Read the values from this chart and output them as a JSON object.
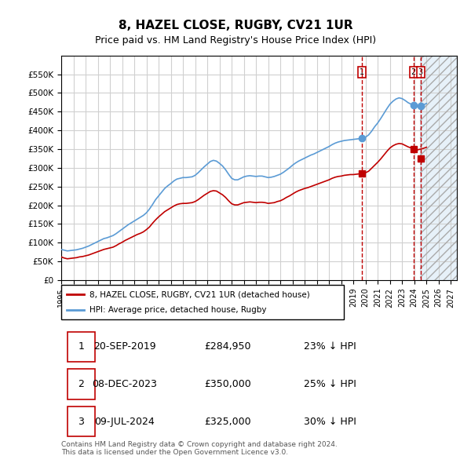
{
  "title": "8, HAZEL CLOSE, RUGBY, CV21 1UR",
  "subtitle": "Price paid vs. HM Land Registry's House Price Index (HPI)",
  "ylabel": "",
  "ylim": [
    0,
    600000
  ],
  "yticks": [
    0,
    50000,
    100000,
    150000,
    200000,
    250000,
    300000,
    350000,
    400000,
    450000,
    500000,
    550000
  ],
  "xlim_start": 1995.0,
  "xlim_end": 2027.5,
  "hpi_color": "#5b9bd5",
  "price_color": "#c00000",
  "vline_color": "#c00000",
  "background_color": "#ffffff",
  "plot_bg_color": "#ffffff",
  "grid_color": "#d0d0d0",
  "legend_label_red": "8, HAZEL CLOSE, RUGBY, CV21 1UR (detached house)",
  "legend_label_blue": "HPI: Average price, detached house, Rugby",
  "transactions": [
    {
      "num": 1,
      "date": "20-SEP-2019",
      "price": "£284,950",
      "pct": "23% ↓ HPI",
      "year": 2019.72
    },
    {
      "num": 2,
      "date": "08-DEC-2023",
      "price": "£350,000",
      "pct": "25% ↓ HPI",
      "year": 2023.93
    },
    {
      "num": 3,
      "date": "09-JUL-2024",
      "price": "£325,000",
      "pct": "30% ↓ HPI",
      "year": 2024.52
    }
  ],
  "footer": "Contains HM Land Registry data © Crown copyright and database right 2024.\nThis data is licensed under the Open Government Licence v3.0.",
  "hpi_data_x": [
    1995.0,
    1995.25,
    1995.5,
    1995.75,
    1996.0,
    1996.25,
    1996.5,
    1996.75,
    1997.0,
    1997.25,
    1997.5,
    1997.75,
    1998.0,
    1998.25,
    1998.5,
    1998.75,
    1999.0,
    1999.25,
    1999.5,
    1999.75,
    2000.0,
    2000.25,
    2000.5,
    2000.75,
    2001.0,
    2001.25,
    2001.5,
    2001.75,
    2002.0,
    2002.25,
    2002.5,
    2002.75,
    2003.0,
    2003.25,
    2003.5,
    2003.75,
    2004.0,
    2004.25,
    2004.5,
    2004.75,
    2005.0,
    2005.25,
    2005.5,
    2005.75,
    2006.0,
    2006.25,
    2006.5,
    2006.75,
    2007.0,
    2007.25,
    2007.5,
    2007.75,
    2008.0,
    2008.25,
    2008.5,
    2008.75,
    2009.0,
    2009.25,
    2009.5,
    2009.75,
    2010.0,
    2010.25,
    2010.5,
    2010.75,
    2011.0,
    2011.25,
    2011.5,
    2011.75,
    2012.0,
    2012.25,
    2012.5,
    2012.75,
    2013.0,
    2013.25,
    2013.5,
    2013.75,
    2014.0,
    2014.25,
    2014.5,
    2014.75,
    2015.0,
    2015.25,
    2015.5,
    2015.75,
    2016.0,
    2016.25,
    2016.5,
    2016.75,
    2017.0,
    2017.25,
    2017.5,
    2017.75,
    2018.0,
    2018.25,
    2018.5,
    2018.75,
    2019.0,
    2019.25,
    2019.5,
    2019.75,
    2020.0,
    2020.25,
    2020.5,
    2020.75,
    2021.0,
    2021.25,
    2021.5,
    2021.75,
    2022.0,
    2022.25,
    2022.5,
    2022.75,
    2023.0,
    2023.25,
    2023.5,
    2023.75,
    2024.0,
    2024.25,
    2024.5,
    2024.75,
    2025.0
  ],
  "hpi_data_y": [
    82000,
    80000,
    78000,
    79000,
    80000,
    81000,
    83000,
    85000,
    88000,
    91000,
    95000,
    99000,
    103000,
    107000,
    111000,
    113000,
    116000,
    119000,
    124000,
    130000,
    136000,
    142000,
    148000,
    153000,
    158000,
    163000,
    168000,
    173000,
    180000,
    190000,
    202000,
    215000,
    225000,
    235000,
    245000,
    252000,
    258000,
    265000,
    270000,
    272000,
    274000,
    274000,
    275000,
    276000,
    280000,
    287000,
    295000,
    303000,
    310000,
    317000,
    320000,
    318000,
    312000,
    305000,
    295000,
    283000,
    272000,
    268000,
    268000,
    272000,
    276000,
    278000,
    279000,
    278000,
    277000,
    278000,
    278000,
    276000,
    274000,
    275000,
    277000,
    280000,
    283000,
    288000,
    294000,
    300000,
    307000,
    313000,
    318000,
    322000,
    326000,
    330000,
    334000,
    337000,
    341000,
    345000,
    349000,
    353000,
    357000,
    362000,
    366000,
    369000,
    371000,
    373000,
    374000,
    375000,
    376000,
    377000,
    378000,
    380000,
    382000,
    388000,
    398000,
    410000,
    420000,
    432000,
    445000,
    458000,
    470000,
    478000,
    484000,
    487000,
    485000,
    480000,
    474000,
    470000,
    466000,
    463000,
    465000,
    468000,
    472000
  ],
  "price_data_x": [
    1995.0,
    1995.25,
    1995.5,
    1995.75,
    1996.0,
    1996.25,
    1996.5,
    1996.75,
    1997.0,
    1997.25,
    1997.5,
    1997.75,
    1998.0,
    1998.25,
    1998.5,
    1998.75,
    1999.0,
    1999.25,
    1999.5,
    1999.75,
    2000.0,
    2000.25,
    2000.5,
    2000.75,
    2001.0,
    2001.25,
    2001.5,
    2001.75,
    2002.0,
    2002.25,
    2002.5,
    2002.75,
    2003.0,
    2003.25,
    2003.5,
    2003.75,
    2004.0,
    2004.25,
    2004.5,
    2004.75,
    2005.0,
    2005.25,
    2005.5,
    2005.75,
    2006.0,
    2006.25,
    2006.5,
    2006.75,
    2007.0,
    2007.25,
    2007.5,
    2007.75,
    2008.0,
    2008.25,
    2008.5,
    2008.75,
    2009.0,
    2009.25,
    2009.5,
    2009.75,
    2010.0,
    2010.25,
    2010.5,
    2010.75,
    2011.0,
    2011.25,
    2011.5,
    2011.75,
    2012.0,
    2012.25,
    2012.5,
    2012.75,
    2013.0,
    2013.25,
    2013.5,
    2013.75,
    2014.0,
    2014.25,
    2014.5,
    2014.75,
    2015.0,
    2015.25,
    2015.5,
    2015.75,
    2016.0,
    2016.25,
    2016.5,
    2016.75,
    2017.0,
    2017.25,
    2017.5,
    2017.75,
    2018.0,
    2018.25,
    2018.5,
    2018.75,
    2019.0,
    2019.25,
    2019.5,
    2019.75,
    2020.0,
    2020.25,
    2020.5,
    2020.75,
    2021.0,
    2021.25,
    2021.5,
    2021.75,
    2022.0,
    2022.25,
    2022.5,
    2022.75,
    2023.0,
    2023.25,
    2023.5,
    2023.75,
    2024.0,
    2024.25,
    2024.5,
    2024.75,
    2025.0
  ],
  "price_data_y": [
    62000,
    59000,
    57000,
    58000,
    59000,
    60000,
    62000,
    63000,
    65000,
    67000,
    70000,
    73000,
    76000,
    79000,
    82000,
    84000,
    86000,
    88000,
    92000,
    97000,
    101000,
    106000,
    110000,
    114000,
    118000,
    122000,
    125000,
    129000,
    135000,
    142000,
    152000,
    161000,
    169000,
    176000,
    183000,
    188000,
    193000,
    198000,
    202000,
    204000,
    205000,
    205000,
    206000,
    207000,
    210000,
    215000,
    221000,
    227000,
    232000,
    237000,
    239000,
    238000,
    233000,
    228000,
    221000,
    212000,
    204000,
    201000,
    201000,
    204000,
    207000,
    208000,
    209000,
    208000,
    207000,
    208000,
    208000,
    207000,
    205000,
    206000,
    207000,
    210000,
    212000,
    216000,
    221000,
    225000,
    230000,
    235000,
    239000,
    242000,
    245000,
    247000,
    250000,
    253000,
    256000,
    259000,
    262000,
    265000,
    268000,
    272000,
    275000,
    277000,
    278000,
    280000,
    281000,
    282000,
    282000,
    283000,
    284000,
    285000,
    287000,
    291000,
    299000,
    307000,
    315000,
    324000,
    334000,
    344000,
    353000,
    359000,
    363000,
    365000,
    364000,
    360000,
    356000,
    353000,
    350000,
    348000,
    350000,
    352000,
    355000
  ]
}
